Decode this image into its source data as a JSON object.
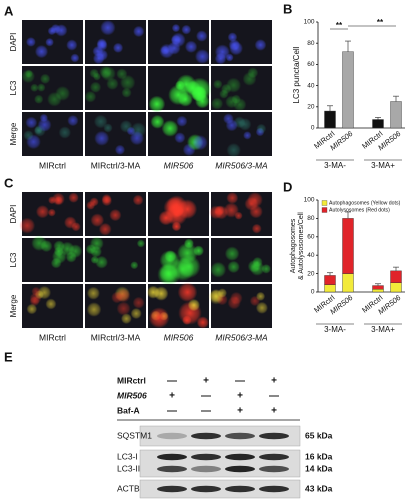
{
  "panels": {
    "A": {
      "label": "A",
      "rows": [
        "DAPI",
        "LC3",
        "Merge"
      ],
      "row_colors": [
        "#2f3fb8",
        "#2e9e2e",
        "#111111"
      ],
      "columns": [
        "MIRctrl",
        "MIRctrl/3-MA",
        "MIR506",
        "MIR506/3-MA"
      ],
      "italic_columns": [
        false,
        false,
        true,
        true
      ]
    },
    "C": {
      "label": "C",
      "rows": [
        "DAPI",
        "LC3",
        "Merge"
      ],
      "row_colors": [
        "#2f3fb8",
        "#2e9e2e",
        "#111111"
      ],
      "columns": [
        "MIRctrl",
        "MIRctrl/3-MA",
        "MIR506",
        "MIR506/3-MA"
      ],
      "italic_columns": [
        false,
        false,
        true,
        true
      ]
    },
    "E": {
      "label": "E",
      "conditions": [
        {
          "name": "MIRctrl",
          "italic": false,
          "signs": [
            "—",
            "+",
            "—",
            "+"
          ]
        },
        {
          "name": "MIR506",
          "italic": true,
          "signs": [
            "+",
            "—",
            "+",
            "—"
          ]
        },
        {
          "name": "Baf-A",
          "italic": false,
          "signs": [
            "—",
            "—",
            "+",
            "+"
          ]
        }
      ],
      "bands": [
        {
          "names": [
            "SQSTM1"
          ],
          "kda": [
            "65 kDa"
          ]
        },
        {
          "names": [
            "LC3-I",
            "LC3-II"
          ],
          "kda": [
            "16 kDa",
            "14 kDa"
          ]
        },
        {
          "names": [
            "ACTB"
          ],
          "kda": [
            "43 kDa"
          ]
        }
      ]
    }
  },
  "chart_data": [
    {
      "type": "bar",
      "panel": "B",
      "ylabel": "LC3 puncta/Cell",
      "categories": [
        "MIRctrl",
        "MIR506",
        "MIRctrl",
        "MIR506"
      ],
      "italic_categories": [
        false,
        true,
        false,
        true
      ],
      "groups": [
        "3-MA-",
        "3-MA+"
      ],
      "values": [
        16,
        72,
        8,
        25
      ],
      "errors": [
        5,
        10,
        2,
        5
      ],
      "colors": [
        "#111111",
        "#a8a8a8",
        "#111111",
        "#a8a8a8"
      ],
      "ylim": [
        0,
        100
      ],
      "yticks": [
        0,
        20,
        40,
        60,
        80,
        100
      ],
      "annotations": [
        "**",
        "**"
      ]
    },
    {
      "type": "stacked_bar",
      "panel": "D",
      "ylabel": [
        "Autophagosomes",
        "& Autolysosomes/Cell"
      ],
      "categories": [
        "MIRctrl",
        "MIR506",
        "MIRctrl",
        "MIR506"
      ],
      "italic_categories": [
        false,
        true,
        false,
        true
      ],
      "groups": [
        "3-MA-",
        "3-MA+"
      ],
      "series": [
        {
          "name": "Autophagosomes (Yellow dots)",
          "color": "#f2ea3a",
          "values": [
            8,
            20,
            3,
            10
          ]
        },
        {
          "name": "Autolysosomes (Red dots)",
          "color": "#e0242a",
          "values": [
            10,
            60,
            4,
            13
          ],
          "errors": [
            3,
            7,
            2,
            4
          ]
        }
      ],
      "ylim": [
        0,
        100
      ],
      "yticks": [
        0,
        20,
        40,
        60,
        80,
        100
      ]
    }
  ]
}
